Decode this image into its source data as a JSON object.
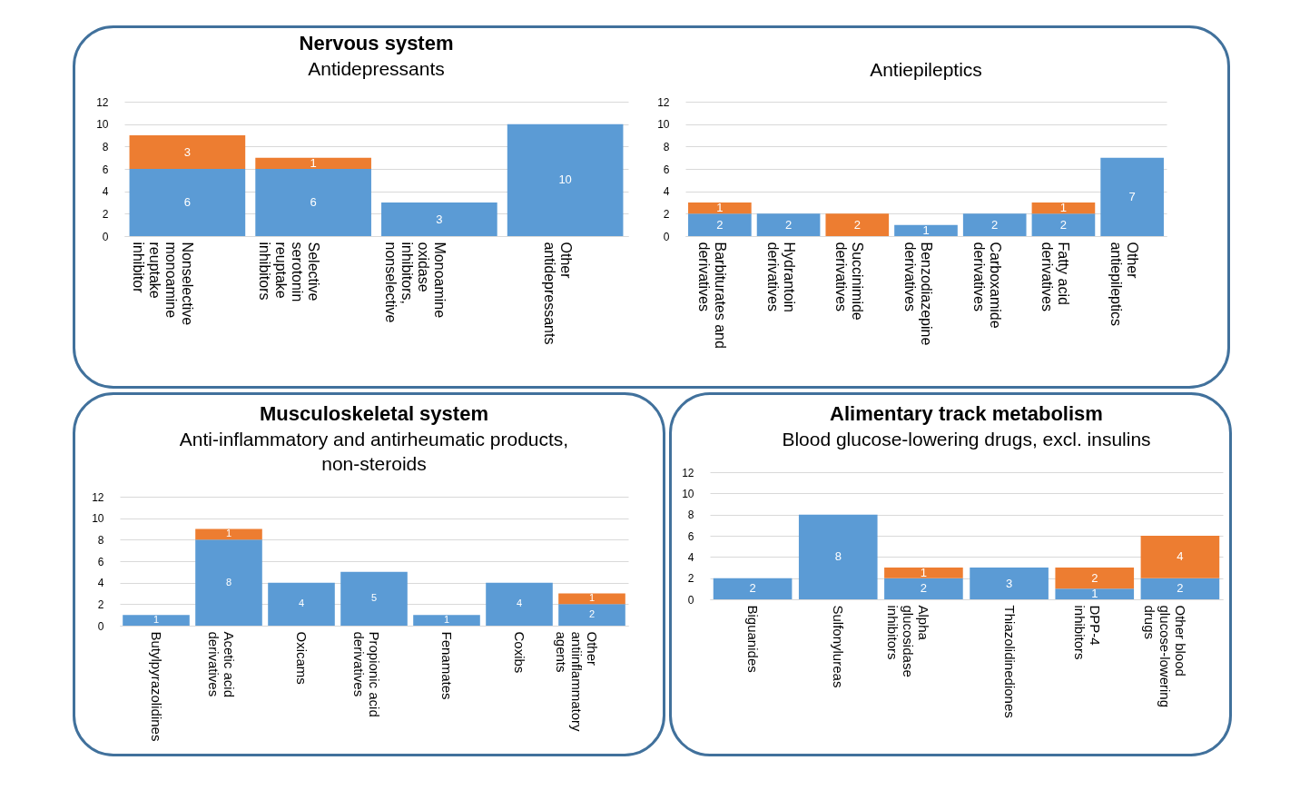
{
  "chart_data": [
    {
      "type": "bar",
      "title": "Nervous system",
      "subtitle": "Antidepressants",
      "categories": [
        "Nonselective monoamine reuptake inhibitor",
        "Selective serotonin reuptake inhibitors",
        "Monoamine oxidase inhibitors, nonselective",
        "Other antidepressants"
      ],
      "stacked": true,
      "data_labels": true,
      "grid": "y",
      "ylim": [
        0,
        12
      ],
      "yticks": [
        0,
        2,
        4,
        6,
        8,
        10,
        12
      ],
      "series": [
        {
          "color": "#5b9bd5",
          "values": [
            6,
            6,
            3,
            10
          ]
        },
        {
          "color": "#ed7d31",
          "values": [
            3,
            1,
            null,
            null
          ]
        }
      ]
    },
    {
      "type": "bar",
      "subtitle": "Antiepileptics",
      "categories": [
        "Barbiturates and derivatives",
        "Hydrantoin derivatives",
        "Succinimide derivatives",
        "Benzodiazepine derivatives",
        "Carboxamide derivatives",
        "Fatty acid derivatives",
        "Other antiepileptics"
      ],
      "stacked": true,
      "data_labels": true,
      "grid": "y",
      "ylim": [
        0,
        12
      ],
      "yticks": [
        0,
        2,
        4,
        6,
        8,
        10,
        12
      ],
      "series": [
        {
          "color": "#5b9bd5",
          "values": [
            2,
            2,
            null,
            1,
            2,
            2,
            7
          ]
        },
        {
          "color": "#ed7d31",
          "values": [
            1,
            null,
            2,
            null,
            null,
            1,
            null
          ]
        }
      ]
    },
    {
      "type": "bar",
      "title": "Musculoskeletal system",
      "subtitle": "Anti-inflammatory and antirheumatic products, non-steroids",
      "categories": [
        "Butylpyrazolidines",
        "Acetic acid derivatives",
        "Oxicams",
        "Propionic acid derivatives",
        "Fenamates",
        "Coxibs",
        "Other antiinflammatory agents"
      ],
      "stacked": true,
      "data_labels": true,
      "grid": "y",
      "ylim": [
        0,
        12
      ],
      "yticks": [
        0,
        2,
        4,
        6,
        8,
        10,
        12
      ],
      "series": [
        {
          "color": "#5b9bd5",
          "values": [
            1,
            8,
            4,
            5,
            1,
            4,
            2
          ]
        },
        {
          "color": "#ed7d31",
          "values": [
            null,
            1,
            null,
            null,
            null,
            null,
            1
          ]
        }
      ]
    },
    {
      "type": "bar",
      "title": "Alimentary track metabolism",
      "subtitle": "Blood glucose-lowering drugs, excl. insulins",
      "categories": [
        "Biguanides",
        "Sulfonylureas",
        "Alpha glucosidase inhibitors",
        "Thiazolidinediones",
        "DPP-4 inhibitors",
        "Other blood glucose-lowering drugs"
      ],
      "stacked": true,
      "data_labels": true,
      "grid": "y",
      "ylim": [
        0,
        12
      ],
      "yticks": [
        0,
        2,
        4,
        6,
        8,
        10,
        12
      ],
      "series": [
        {
          "color": "#5b9bd5",
          "values": [
            2,
            8,
            2,
            3,
            1,
            2
          ]
        },
        {
          "color": "#ed7d31",
          "values": [
            null,
            null,
            1,
            null,
            2,
            4
          ]
        }
      ]
    }
  ]
}
